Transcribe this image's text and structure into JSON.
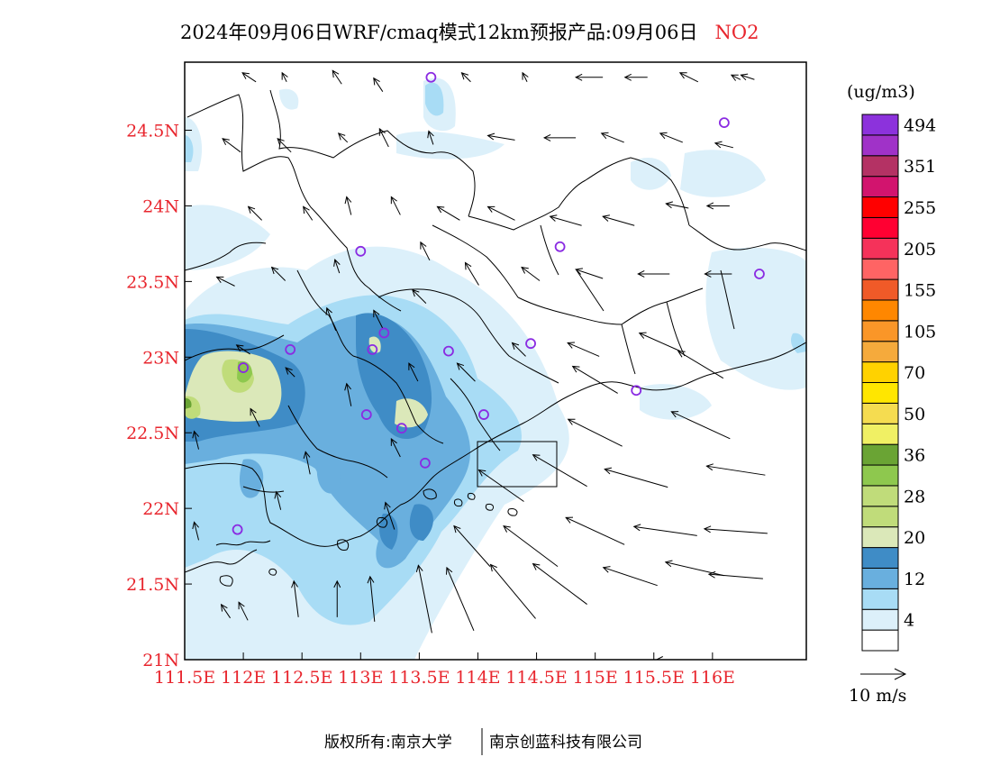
{
  "title": {
    "prefix": "2024年09月06日WRF/cmaq模式12km预报产品:09月06日",
    "pollutant": "NO2"
  },
  "map": {
    "lon_range": [
      111.5,
      116.8
    ],
    "lat_range": [
      21.0,
      24.95
    ],
    "x_ticks": [
      {
        "value": 111.5,
        "label": "111.5E"
      },
      {
        "value": 112.0,
        "label": "112E"
      },
      {
        "value": 112.5,
        "label": "112.5E"
      },
      {
        "value": 113.0,
        "label": "113E"
      },
      {
        "value": 113.5,
        "label": "113.5E"
      },
      {
        "value": 114.0,
        "label": "114E"
      },
      {
        "value": 114.5,
        "label": "114.5E"
      },
      {
        "value": 115.0,
        "label": "115E"
      },
      {
        "value": 115.5,
        "label": "115.5E"
      },
      {
        "value": 116.0,
        "label": "116E"
      }
    ],
    "y_ticks": [
      {
        "value": 21.0,
        "label": "21N"
      },
      {
        "value": 21.5,
        "label": "21.5N"
      },
      {
        "value": 22.0,
        "label": "22N"
      },
      {
        "value": 22.5,
        "label": "22.5N"
      },
      {
        "value": 23.0,
        "label": "23N"
      },
      {
        "value": 23.5,
        "label": "23.5N"
      },
      {
        "value": 24.0,
        "label": "24N"
      },
      {
        "value": 24.5,
        "label": "24.5N"
      }
    ],
    "stations": [
      {
        "lon": 113.6,
        "lat": 24.85
      },
      {
        "lon": 116.1,
        "lat": 24.55
      },
      {
        "lon": 113.0,
        "lat": 23.7
      },
      {
        "lon": 114.7,
        "lat": 23.73
      },
      {
        "lon": 116.4,
        "lat": 23.55
      },
      {
        "lon": 112.4,
        "lat": 23.05
      },
      {
        "lon": 113.1,
        "lat": 23.05
      },
      {
        "lon": 113.2,
        "lat": 23.16
      },
      {
        "lon": 113.75,
        "lat": 23.04
      },
      {
        "lon": 114.45,
        "lat": 23.09
      },
      {
        "lon": 112.0,
        "lat": 22.93
      },
      {
        "lon": 115.35,
        "lat": 22.78
      },
      {
        "lon": 113.05,
        "lat": 22.62
      },
      {
        "lon": 113.35,
        "lat": 22.53
      },
      {
        "lon": 114.05,
        "lat": 22.62
      },
      {
        "lon": 113.55,
        "lat": 22.3
      },
      {
        "lon": 111.95,
        "lat": 21.86
      }
    ],
    "station_color": "#8a2be2"
  },
  "colorbar": {
    "unit": "(ug/m3)",
    "colors": [
      "#ffffff",
      "#dcf0fa",
      "#a8dcf5",
      "#69afde",
      "#3f8cc6",
      "#dbe8b9",
      "#c0dc7a",
      "#c0dc7a",
      "#8ec84e",
      "#6aa434",
      "#f0f064",
      "#f5dc50",
      "#ffe600",
      "#ffd200",
      "#f5aa3c",
      "#fa9628",
      "#ff8700",
      "#f05a28",
      "#ff6464",
      "#f5325a",
      "#ff0032",
      "#ff0000",
      "#d2146e",
      "#b43264",
      "#a032c8",
      "#8c32dc"
    ],
    "labels": [
      {
        "after_index": 1,
        "text": "4"
      },
      {
        "after_index": 3,
        "text": "12"
      },
      {
        "after_index": 5,
        "text": "20"
      },
      {
        "after_index": 7,
        "text": "28"
      },
      {
        "after_index": 9,
        "text": "36"
      },
      {
        "after_index": 11,
        "text": "50"
      },
      {
        "after_index": 13,
        "text": "70"
      },
      {
        "after_index": 15,
        "text": "105"
      },
      {
        "after_index": 17,
        "text": "155"
      },
      {
        "after_index": 19,
        "text": "205"
      },
      {
        "after_index": 21,
        "text": "255"
      },
      {
        "after_index": 23,
        "text": "351"
      },
      {
        "after_index": 25,
        "text": "494"
      }
    ]
  },
  "wind_legend": {
    "label": "10 m/s",
    "speed": 10
  },
  "footer": {
    "left": "版权所有:南京大学",
    "right": "南京创蓝科技有限公司"
  },
  "wind_vectors": [
    {
      "lon": 111.85,
      "lat": 21.32,
      "u": -2,
      "v": 3
    },
    {
      "lon": 112.0,
      "lat": 21.32,
      "u": -2,
      "v": 4
    },
    {
      "lon": 112.45,
      "lat": 21.4,
      "u": -1,
      "v": 8
    },
    {
      "lon": 112.8,
      "lat": 21.4,
      "u": 0,
      "v": 8
    },
    {
      "lon": 113.1,
      "lat": 21.4,
      "u": -1,
      "v": 10
    },
    {
      "lon": 113.55,
      "lat": 21.4,
      "u": -3,
      "v": 15
    },
    {
      "lon": 113.85,
      "lat": 21.4,
      "u": -6,
      "v": 14
    },
    {
      "lon": 114.3,
      "lat": 21.45,
      "u": -10,
      "v": 12
    },
    {
      "lon": 114.7,
      "lat": 21.5,
      "u": -12,
      "v": 9
    },
    {
      "lon": 115.3,
      "lat": 21.55,
      "u": -12,
      "v": 4
    },
    {
      "lon": 115.85,
      "lat": 21.6,
      "u": -13,
      "v": 3
    },
    {
      "lon": 116.2,
      "lat": 21.55,
      "u": -12,
      "v": 1
    },
    {
      "lon": 115.6,
      "lat": 21.0,
      "u": -4,
      "v": 0
    },
    {
      "lon": 111.6,
      "lat": 21.85,
      "u": -1,
      "v": 4
    },
    {
      "lon": 112.3,
      "lat": 22.05,
      "u": -1,
      "v": 4
    },
    {
      "lon": 113.25,
      "lat": 21.95,
      "u": -2,
      "v": 6
    },
    {
      "lon": 113.95,
      "lat": 21.75,
      "u": -8,
      "v": 9
    },
    {
      "lon": 114.45,
      "lat": 21.75,
      "u": -12,
      "v": 9
    },
    {
      "lon": 115.0,
      "lat": 21.85,
      "u": -13,
      "v": 6
    },
    {
      "lon": 115.6,
      "lat": 21.85,
      "u": -14,
      "v": 2
    },
    {
      "lon": 116.2,
      "lat": 21.85,
      "u": -14,
      "v": 1
    },
    {
      "lon": 114.7,
      "lat": 22.25,
      "u": -12,
      "v": 7
    },
    {
      "lon": 115.35,
      "lat": 22.2,
      "u": -14,
      "v": 4
    },
    {
      "lon": 116.2,
      "lat": 22.25,
      "u": -13,
      "v": 2
    },
    {
      "lon": 114.2,
      "lat": 22.15,
      "u": -10,
      "v": 7
    },
    {
      "lon": 115.0,
      "lat": 22.5,
      "u": -12,
      "v": 6
    },
    {
      "lon": 115.9,
      "lat": 22.55,
      "u": -13,
      "v": 6
    },
    {
      "lon": 115.0,
      "lat": 22.85,
      "u": -10,
      "v": 6
    },
    {
      "lon": 115.9,
      "lat": 22.95,
      "u": -10,
      "v": 6
    },
    {
      "lon": 115.55,
      "lat": 23.1,
      "u": -9,
      "v": 4
    },
    {
      "lon": 114.9,
      "lat": 23.05,
      "u": -7,
      "v": 3
    },
    {
      "lon": 114.35,
      "lat": 23.05,
      "u": -3,
      "v": 3
    },
    {
      "lon": 113.9,
      "lat": 22.9,
      "u": -4,
      "v": 4
    },
    {
      "lon": 113.45,
      "lat": 22.9,
      "u": -2,
      "v": 4
    },
    {
      "lon": 113.3,
      "lat": 22.4,
      "u": -2,
      "v": 4
    },
    {
      "lon": 112.55,
      "lat": 22.3,
      "u": -1,
      "v": 5
    },
    {
      "lon": 112.9,
      "lat": 22.75,
      "u": -1,
      "v": 5
    },
    {
      "lon": 112.1,
      "lat": 22.6,
      "u": -2,
      "v": 4
    },
    {
      "lon": 111.6,
      "lat": 22.45,
      "u": -1,
      "v": 4
    },
    {
      "lon": 112.0,
      "lat": 23.05,
      "u": -3,
      "v": 2
    },
    {
      "lon": 112.4,
      "lat": 22.9,
      "u": -2,
      "v": 2
    },
    {
      "lon": 112.75,
      "lat": 23.25,
      "u": -2,
      "v": 5
    },
    {
      "lon": 113.15,
      "lat": 23.25,
      "u": -2,
      "v": 4
    },
    {
      "lon": 113.5,
      "lat": 23.4,
      "u": -3,
      "v": 3
    },
    {
      "lon": 113.95,
      "lat": 23.55,
      "u": -3,
      "v": 5
    },
    {
      "lon": 114.45,
      "lat": 23.55,
      "u": -4,
      "v": 3
    },
    {
      "lon": 114.95,
      "lat": 23.55,
      "u": -6,
      "v": 2
    },
    {
      "lon": 115.5,
      "lat": 23.55,
      "u": -7,
      "v": 0
    },
    {
      "lon": 116.05,
      "lat": 23.55,
      "u": -6,
      "v": 0
    },
    {
      "lon": 115.2,
      "lat": 23.9,
      "u": -7,
      "v": 2
    },
    {
      "lon": 114.75,
      "lat": 23.9,
      "u": -7,
      "v": 2
    },
    {
      "lon": 114.2,
      "lat": 23.95,
      "u": -6,
      "v": 3
    },
    {
      "lon": 113.75,
      "lat": 23.95,
      "u": -5,
      "v": 3
    },
    {
      "lon": 113.3,
      "lat": 24.0,
      "u": -2,
      "v": 4
    },
    {
      "lon": 112.9,
      "lat": 24.0,
      "u": -1,
      "v": 4
    },
    {
      "lon": 112.55,
      "lat": 23.95,
      "u": -2,
      "v": 3
    },
    {
      "lon": 112.1,
      "lat": 23.95,
      "u": -3,
      "v": 3
    },
    {
      "lon": 111.85,
      "lat": 23.5,
      "u": -4,
      "v": 2
    },
    {
      "lon": 112.3,
      "lat": 23.55,
      "u": -3,
      "v": 3
    },
    {
      "lon": 112.8,
      "lat": 23.6,
      "u": -1,
      "v": 3
    },
    {
      "lon": 113.55,
      "lat": 23.7,
      "u": -2,
      "v": 4
    },
    {
      "lon": 116.05,
      "lat": 24.0,
      "u": -5,
      "v": 0
    },
    {
      "lon": 115.7,
      "lat": 24.0,
      "u": -5,
      "v": 1
    },
    {
      "lon": 111.9,
      "lat": 24.4,
      "u": -4,
      "v": 3
    },
    {
      "lon": 112.35,
      "lat": 24.4,
      "u": -3,
      "v": 3
    },
    {
      "lon": 112.85,
      "lat": 24.45,
      "u": -2,
      "v": 2
    },
    {
      "lon": 113.2,
      "lat": 24.45,
      "u": -2,
      "v": 4
    },
    {
      "lon": 113.6,
      "lat": 24.45,
      "u": -1,
      "v": 3
    },
    {
      "lon": 114.2,
      "lat": 24.45,
      "u": -6,
      "v": 1
    },
    {
      "lon": 114.7,
      "lat": 24.45,
      "u": -7,
      "v": 0
    },
    {
      "lon": 115.15,
      "lat": 24.45,
      "u": -5,
      "v": 2
    },
    {
      "lon": 115.65,
      "lat": 24.45,
      "u": -5,
      "v": 2
    },
    {
      "lon": 116.1,
      "lat": 24.4,
      "u": -4,
      "v": 1
    },
    {
      "lon": 112.05,
      "lat": 24.85,
      "u": -3,
      "v": 2
    },
    {
      "lon": 112.35,
      "lat": 24.85,
      "u": -1,
      "v": 2
    },
    {
      "lon": 112.8,
      "lat": 24.85,
      "u": -2,
      "v": 3
    },
    {
      "lon": 113.15,
      "lat": 24.8,
      "u": -2,
      "v": 3
    },
    {
      "lon": 113.9,
      "lat": 24.85,
      "u": -2,
      "v": 2
    },
    {
      "lon": 114.4,
      "lat": 24.85,
      "u": -1,
      "v": 2
    },
    {
      "lon": 114.95,
      "lat": 24.85,
      "u": -6,
      "v": 0
    },
    {
      "lon": 115.35,
      "lat": 24.85,
      "u": -5,
      "v": 0
    },
    {
      "lon": 115.8,
      "lat": 24.85,
      "u": -4,
      "v": 2
    },
    {
      "lon": 116.3,
      "lat": 24.85,
      "u": -3,
      "v": 1
    },
    {
      "lon": 116.2,
      "lat": 24.85,
      "u": -2,
      "v": 1
    }
  ]
}
